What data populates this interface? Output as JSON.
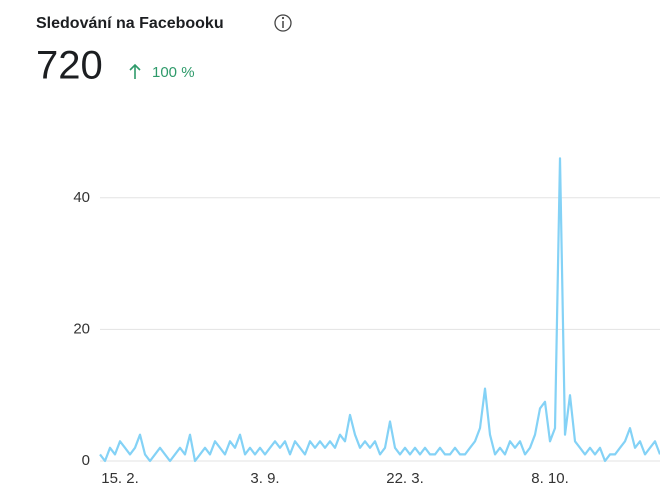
{
  "header": {
    "title": "Sledování na Facebooku",
    "value": "720",
    "change": "100 %"
  },
  "chart_data": {
    "type": "line",
    "categories": [
      null,
      null,
      null,
      null,
      "15. 2.",
      null,
      null,
      null,
      null,
      null,
      null,
      null,
      null,
      null,
      null,
      null,
      null,
      null,
      null,
      null,
      null,
      null,
      null,
      null,
      null,
      null,
      null,
      null,
      null,
      null,
      null,
      null,
      null,
      "3. 9.",
      null,
      null,
      null,
      null,
      null,
      null,
      null,
      null,
      null,
      null,
      null,
      null,
      null,
      null,
      null,
      null,
      null,
      null,
      null,
      null,
      null,
      null,
      null,
      null,
      null,
      null,
      null,
      "22. 3.",
      null,
      null,
      null,
      null,
      null,
      null,
      null,
      null,
      null,
      null,
      null,
      null,
      null,
      null,
      null,
      null,
      null,
      null,
      null,
      null,
      null,
      null,
      null,
      null,
      null,
      null,
      null,
      null,
      "8. 10.",
      null,
      null,
      null,
      null,
      null,
      null,
      null,
      null,
      null,
      null,
      null,
      null,
      null,
      null,
      null,
      null,
      null,
      null,
      null,
      null,
      null,
      null
    ],
    "series": [
      {
        "color": "#84d2f6",
        "values": [
          1,
          0,
          2,
          1,
          3,
          2,
          1,
          2,
          4,
          1,
          0,
          1,
          2,
          1,
          0,
          1,
          2,
          1,
          4,
          0,
          1,
          2,
          1,
          3,
          2,
          1,
          3,
          2,
          4,
          1,
          2,
          1,
          2,
          1,
          2,
          3,
          2,
          3,
          1,
          3,
          2,
          1,
          3,
          2,
          3,
          2,
          3,
          2,
          4,
          3,
          7,
          4,
          2,
          3,
          2,
          3,
          1,
          2,
          6,
          2,
          1,
          2,
          1,
          2,
          1,
          2,
          1,
          1,
          2,
          1,
          1,
          2,
          1,
          1,
          2,
          3,
          5,
          11,
          4,
          1,
          2,
          1,
          3,
          2,
          3,
          1,
          2,
          4,
          8,
          9,
          3,
          5,
          46,
          4,
          10,
          3,
          2,
          1,
          2,
          1,
          2,
          0,
          1,
          1,
          2,
          3,
          5,
          2,
          3,
          1,
          2,
          3,
          1
        ]
      }
    ],
    "ylim": [
      0,
      50
    ],
    "yticks": [
      0,
      20,
      40
    ],
    "grid": true
  }
}
